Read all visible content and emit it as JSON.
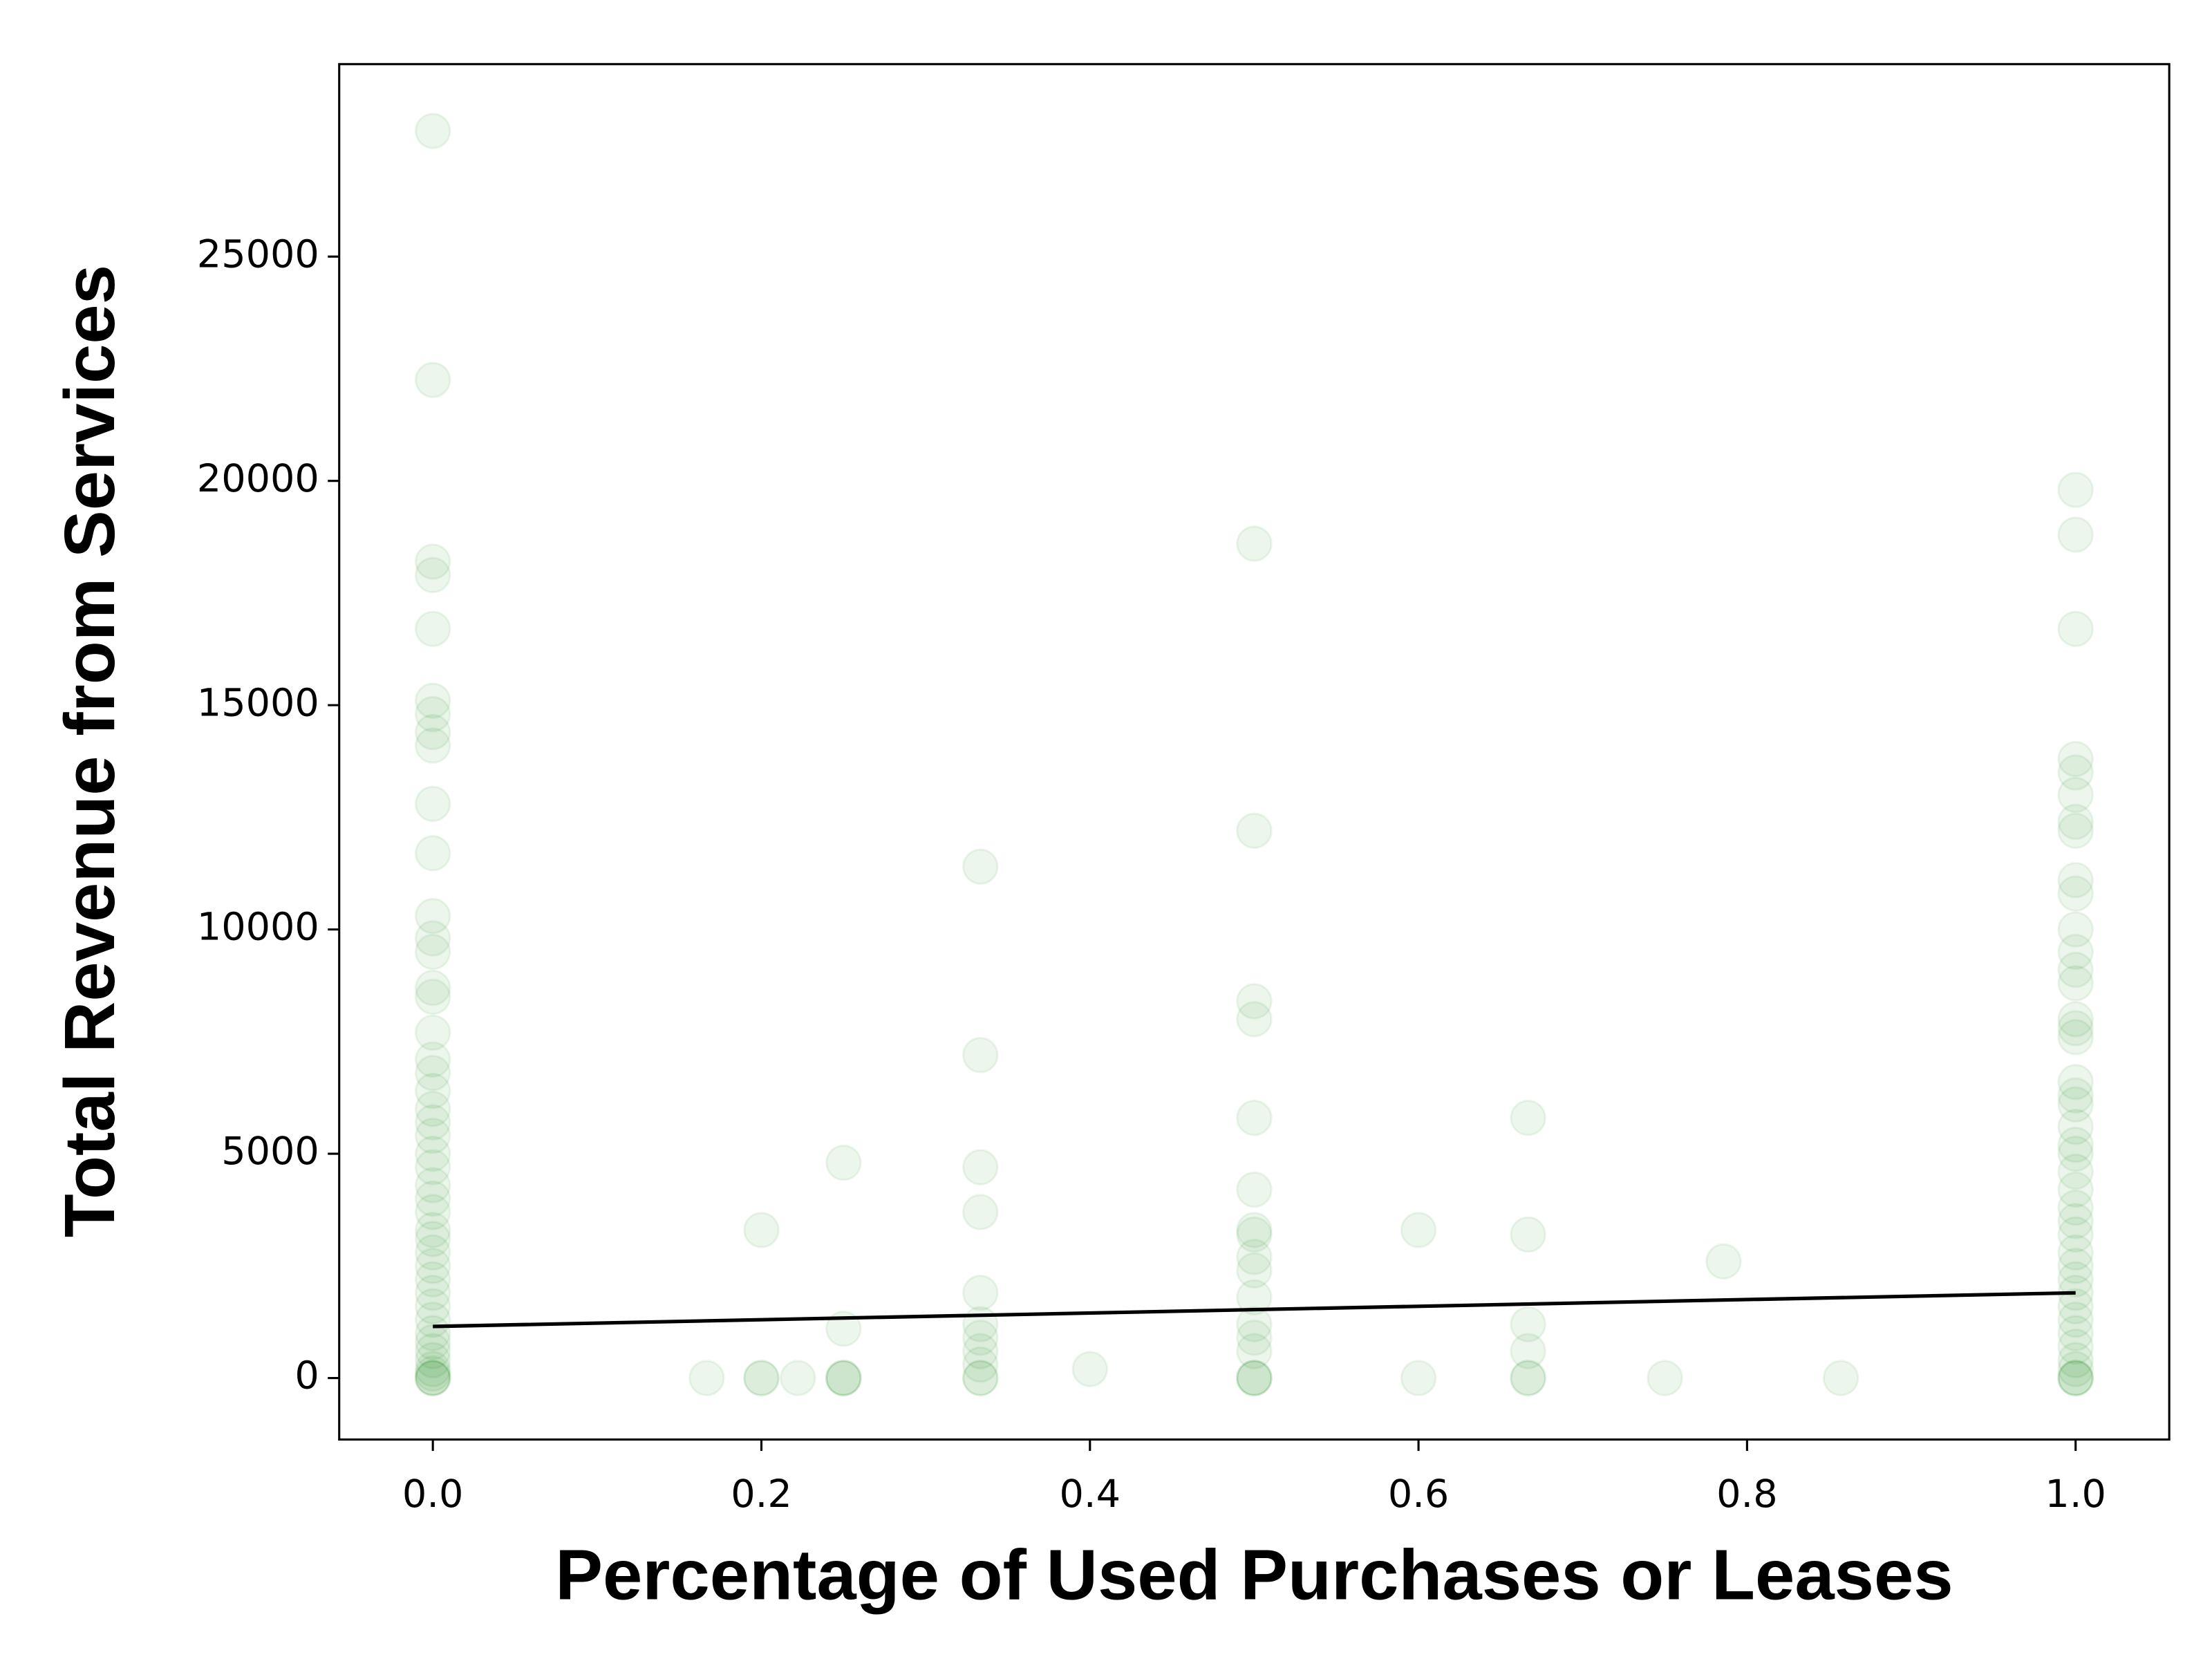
{
  "chart_data": {
    "type": "scatter",
    "xlabel": "Percentage of Used Purchases or Leases",
    "ylabel": "Total Revenue from Services",
    "xlim": [
      -0.057,
      1.057
    ],
    "ylim": [
      -1370,
      29290
    ],
    "xticks": [
      {
        "value": 0,
        "label": "0.0"
      },
      0.2,
      0.4,
      0.6,
      0.8,
      {
        "value": 1,
        "label": "1.0"
      }
    ],
    "yticks": [
      0,
      5000,
      10000,
      15000,
      20000,
      25000
    ],
    "color": "green",
    "alpha": 0.07,
    "x": [
      0,
      0,
      0,
      0,
      0,
      0,
      0,
      0,
      0,
      0,
      0,
      0,
      0,
      0,
      0,
      0,
      0,
      0,
      0,
      0,
      0,
      0,
      0,
      0,
      0,
      0,
      0,
      0,
      0,
      0,
      0,
      0,
      0,
      0,
      0,
      0,
      0,
      0,
      0,
      0,
      0,
      0,
      0,
      0,
      0,
      0.1667,
      0.2,
      0.2,
      0.2,
      0.2222,
      0.25,
      0.25,
      0.25,
      0.25,
      0.25,
      0.3333,
      0.3333,
      0.3333,
      0.3333,
      0.3333,
      0.3333,
      0.3333,
      0.3333,
      0.3333,
      0.3333,
      0.3333,
      0.4,
      0.5,
      0.5,
      0.5,
      0.5,
      0.5,
      0.5,
      0.5,
      0.5,
      0.5,
      0.5,
      0.5,
      0.5,
      0.5,
      0.5,
      0.5,
      0.5,
      0.5,
      0.6,
      0.6,
      0.6667,
      0.6667,
      0.6667,
      0.6667,
      0.6667,
      0.6667,
      0.75,
      0.7857,
      0.8571,
      1,
      1,
      1,
      1,
      1,
      1,
      1,
      1,
      1,
      1,
      1,
      1,
      1,
      1,
      1,
      1,
      1,
      1,
      1,
      1,
      1,
      1,
      1,
      1,
      1,
      1,
      1,
      1,
      1,
      1,
      1,
      1,
      1,
      1,
      1,
      1,
      1,
      1,
      1,
      1,
      1
    ],
    "values": [
      27800,
      22250,
      18200,
      17900,
      16700,
      15100,
      14800,
      14400,
      14100,
      12800,
      11700,
      10300,
      9800,
      9500,
      8700,
      8500,
      7700,
      7100,
      6800,
      6400,
      6000,
      5700,
      5400,
      5000,
      4700,
      4300,
      4000,
      3700,
      3300,
      3100,
      2800,
      2500,
      2200,
      1900,
      1600,
      1300,
      1000,
      800,
      600,
      400,
      200,
      100,
      0,
      0,
      0,
      0,
      3300,
      0,
      0,
      0,
      4800,
      1100,
      0,
      0,
      0,
      11400,
      7200,
      4700,
      3700,
      1900,
      1200,
      900,
      600,
      300,
      0,
      0,
      200,
      18600,
      12200,
      8400,
      8000,
      5800,
      4200,
      3300,
      3200,
      2700,
      2400,
      1800,
      1200,
      900,
      600,
      0,
      0,
      0,
      3300,
      0,
      5800,
      3200,
      1200,
      600,
      0,
      0,
      0,
      2600,
      0,
      19800,
      18800,
      16700,
      13800,
      13500,
      13000,
      12400,
      12200,
      11100,
      10800,
      10000,
      9500,
      9100,
      8800,
      8000,
      7800,
      7600,
      6600,
      6300,
      6100,
      5600,
      5200,
      5000,
      4600,
      4200,
      3800,
      3500,
      3200,
      2800,
      2500,
      2200,
      1900,
      1600,
      1300,
      1000,
      700,
      400,
      200,
      0,
      0,
      0
    ],
    "trend": {
      "x": [
        0,
        1
      ],
      "values": [
        1150,
        1900
      ],
      "color": "black"
    }
  }
}
